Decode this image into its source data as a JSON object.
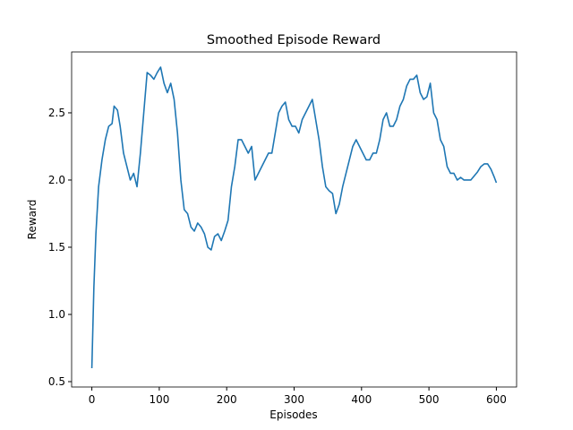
{
  "chart_data": {
    "type": "line",
    "title": "Smoothed Episode Reward",
    "xlabel": "Episodes",
    "ylabel": "Reward",
    "x": [
      0,
      3,
      6,
      10,
      15,
      20,
      25,
      30,
      33,
      38,
      42,
      47,
      52,
      57,
      62,
      67,
      72,
      77,
      82,
      87,
      92,
      97,
      102,
      107,
      112,
      117,
      122,
      127,
      132,
      137,
      142,
      147,
      152,
      157,
      162,
      167,
      172,
      177,
      182,
      187,
      192,
      197,
      202,
      207,
      212,
      217,
      222,
      227,
      232,
      237,
      242,
      247,
      252,
      257,
      262,
      267,
      272,
      277,
      282,
      287,
      292,
      297,
      302,
      307,
      312,
      317,
      322,
      327,
      332,
      337,
      342,
      347,
      352,
      357,
      362,
      367,
      372,
      377,
      382,
      387,
      392,
      397,
      402,
      407,
      412,
      417,
      422,
      427,
      432,
      437,
      442,
      447,
      452,
      457,
      462,
      467,
      472,
      477,
      482,
      487,
      492,
      497,
      502,
      507,
      512,
      517,
      522,
      527,
      532,
      537,
      542,
      547,
      552,
      557,
      562,
      567,
      572,
      577,
      582,
      587,
      592,
      597,
      600
    ],
    "series": [
      {
        "name": "Reward",
        "color": "#1f77b4",
        "values": [
          0.6,
          1.2,
          1.6,
          1.95,
          2.15,
          2.3,
          2.4,
          2.42,
          2.55,
          2.52,
          2.4,
          2.2,
          2.1,
          2.0,
          2.05,
          1.95,
          2.2,
          2.5,
          2.8,
          2.78,
          2.75,
          2.8,
          2.84,
          2.72,
          2.65,
          2.72,
          2.6,
          2.35,
          2.0,
          1.78,
          1.75,
          1.65,
          1.62,
          1.68,
          1.65,
          1.6,
          1.5,
          1.48,
          1.58,
          1.6,
          1.55,
          1.62,
          1.7,
          1.95,
          2.1,
          2.3,
          2.3,
          2.25,
          2.2,
          2.25,
          2.0,
          2.05,
          2.1,
          2.15,
          2.2,
          2.2,
          2.35,
          2.5,
          2.55,
          2.58,
          2.45,
          2.4,
          2.4,
          2.35,
          2.45,
          2.5,
          2.55,
          2.6,
          2.45,
          2.3,
          2.1,
          1.95,
          1.92,
          1.9,
          1.75,
          1.82,
          1.95,
          2.05,
          2.15,
          2.25,
          2.3,
          2.25,
          2.2,
          2.15,
          2.15,
          2.2,
          2.2,
          2.3,
          2.45,
          2.5,
          2.4,
          2.4,
          2.45,
          2.55,
          2.6,
          2.7,
          2.75,
          2.75,
          2.78,
          2.65,
          2.6,
          2.62,
          2.72,
          2.5,
          2.45,
          2.3,
          2.25,
          2.1,
          2.05,
          2.05,
          2.0,
          2.02,
          2.0,
          2.0,
          2.0,
          2.03,
          2.06,
          2.1,
          2.12,
          2.12,
          2.08,
          2.02,
          1.98
        ]
      }
    ],
    "xlim": [
      -30,
      630
    ],
    "ylim": [
      0.46,
      2.953
    ],
    "xticks": [
      0,
      100,
      200,
      300,
      400,
      500,
      600
    ],
    "yticks": [
      0.5,
      {
        "value": 1.0,
        "label": "1.0"
      },
      1.5,
      {
        "value": 2.0,
        "label": "2.0"
      },
      2.5
    ]
  }
}
